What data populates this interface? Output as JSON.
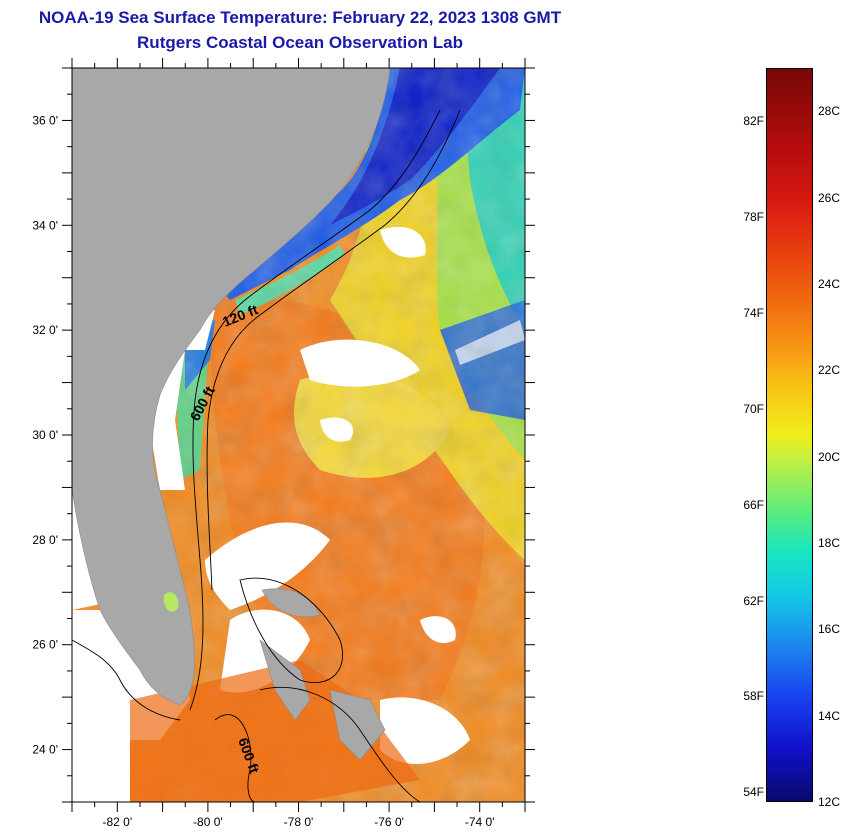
{
  "title": {
    "line1": "NOAA-19 Sea Surface Temperature:  February 22, 2023 1308 GMT",
    "line2": "Rutgers Coastal Ocean Observation Lab"
  },
  "map": {
    "lon_range": [
      -83,
      -73
    ],
    "lat_range": [
      23,
      37
    ],
    "lon_ticks": [
      "-82 0'",
      "-80 0'",
      "-78 0'",
      "-76 0'",
      "-74 0'"
    ],
    "lat_ticks": [
      "36 0'",
      "34 0'",
      "32 0'",
      "30 0'",
      "28 0'",
      "26 0'",
      "24 0'"
    ],
    "depth_labels": [
      "120 ft",
      "600 ft",
      "600 ft"
    ],
    "colors": {
      "land": "#a8a8a8",
      "cloud": "#ffffff",
      "contour": "#000000"
    }
  },
  "colorbar": {
    "fahrenheit": [
      "82F",
      "78F",
      "74F",
      "70F",
      "66F",
      "62F",
      "58F",
      "54F"
    ],
    "celsius": [
      "28C",
      "26C",
      "24C",
      "22C",
      "20C",
      "18C",
      "16C",
      "14C",
      "12C"
    ],
    "range_c": [
      12,
      29
    ]
  }
}
